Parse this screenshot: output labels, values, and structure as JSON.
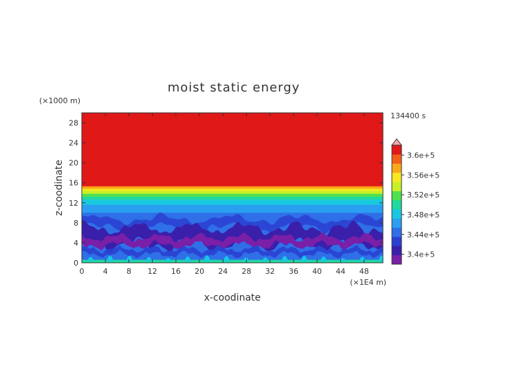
{
  "chart_data": {
    "type": "heatmap",
    "title": "moist static energy",
    "xlabel": "x-coodinate",
    "ylabel": "z-coodinate",
    "x_unit": "(×1E4 m)",
    "y_unit": "(×1000 m)",
    "time_label": "134400 s",
    "xlim": [
      0,
      51.2
    ],
    "ylim": [
      0,
      30
    ],
    "xticks": [
      0,
      4,
      8,
      12,
      16,
      20,
      24,
      28,
      32,
      36,
      40,
      44,
      48
    ],
    "yticks": [
      0,
      4,
      8,
      12,
      16,
      20,
      24,
      28
    ],
    "colorbar": {
      "labels": [
        "3.6e+5",
        "3.56e+5",
        "3.52e+5",
        "3.48e+5",
        "3.44e+5",
        "3.4e+5"
      ],
      "label_values": [
        360000,
        356000,
        352000,
        348000,
        344000,
        340000
      ],
      "min": 338000,
      "max": 362000,
      "step": 2000,
      "colors": [
        "#7a1fa8",
        "#3a1faa",
        "#2a40d0",
        "#2f6fe8",
        "#2a9ef0",
        "#18c8e0",
        "#20d8a0",
        "#50e050",
        "#c8f028",
        "#f8e820",
        "#f8a818",
        "#f06018",
        "#e01818"
      ],
      "overflow_color": "#f8a8a8"
    },
    "layers": [
      {
        "z_range": [
          15.3,
          30
        ],
        "value": 362000
      },
      {
        "z_range": [
          14.8,
          15.3
        ],
        "value": 358000
      },
      {
        "z_range": [
          14.4,
          14.8
        ],
        "value": 357000
      },
      {
        "z_range": [
          13.8,
          14.4
        ],
        "value": 354000
      },
      {
        "z_range": [
          13.2,
          13.8
        ],
        "value": 352000
      },
      {
        "z_range": [
          12.6,
          13.2
        ],
        "value": 351000
      },
      {
        "z_range": [
          11.6,
          12.6
        ],
        "value": 349000
      },
      {
        "z_range": [
          10.0,
          11.6
        ],
        "value": 347000
      },
      {
        "z_range": [
          0.6,
          10.0
        ],
        "value": 345000
      },
      {
        "z_range": [
          0,
          0.6
        ],
        "value": 351000
      }
    ],
    "features": [
      {
        "type": "low_band",
        "z_center": 4.5,
        "value": 341000,
        "description": "turbulent low MSE layer between 2 and 7 km"
      },
      {
        "type": "min_core",
        "z_center": 4.3,
        "value": 339000
      }
    ]
  }
}
